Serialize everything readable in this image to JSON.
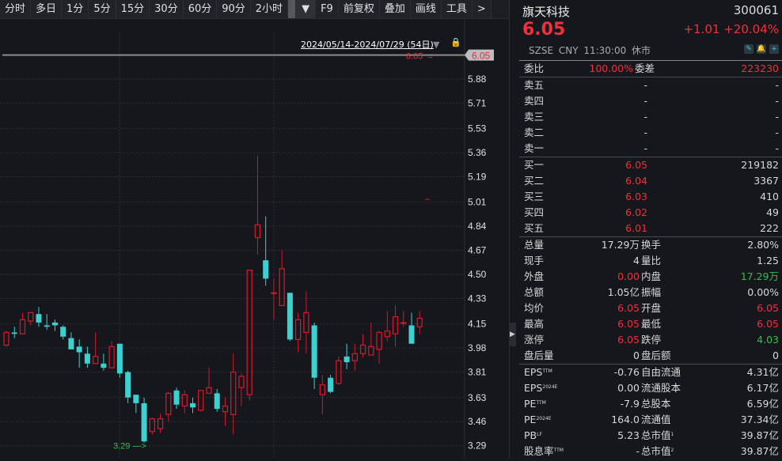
{
  "toolbar": {
    "items": [
      "分时",
      "多日",
      "1分",
      "5分",
      "15分",
      "30分",
      "60分",
      "90分",
      "2小时"
    ],
    "dropdown_icon": "triangle-down",
    "extra": [
      "F9",
      "前复权",
      "叠加",
      "画线",
      "工具",
      ">"
    ]
  },
  "chart": {
    "range_label": "2024/05/14-2024/07/29 (54日)",
    "last_price_label": "6.05",
    "last_price_arrow": "6.05 →",
    "low_label": "3.29 —>",
    "y_ticks": [
      "5.88",
      "5.71",
      "5.53",
      "5.36",
      "5.19",
      "5.01",
      "4.84",
      "4.67",
      "4.50",
      "4.33",
      "4.15",
      "3.98",
      "3.81",
      "3.63",
      "3.46",
      "3.29"
    ],
    "colors": {
      "up": "#d0182a",
      "down": "#3ecfd0",
      "price_line": "#8a8a8a"
    }
  },
  "chart_data": {
    "type": "candlestick",
    "y_ticks": [
      5.88,
      5.71,
      5.53,
      5.36,
      5.19,
      5.01,
      4.84,
      4.67,
      4.5,
      4.33,
      4.15,
      3.98,
      3.81,
      3.63,
      3.46,
      3.29
    ],
    "ylim": [
      3.26,
      6.1
    ],
    "last_price": 6.05,
    "low_marker": 3.29,
    "ohlc": [
      [
        4.0,
        4.1,
        3.99,
        4.09
      ],
      [
        4.09,
        4.13,
        4.05,
        4.08
      ],
      [
        4.08,
        4.23,
        4.08,
        4.18
      ],
      [
        4.17,
        4.23,
        4.14,
        4.23
      ],
      [
        4.22,
        4.27,
        4.13,
        4.16
      ],
      [
        4.14,
        4.22,
        4.11,
        4.13
      ],
      [
        4.16,
        4.18,
        4.1,
        4.14
      ],
      [
        4.13,
        4.14,
        4.04,
        4.06
      ],
      [
        4.05,
        4.09,
        3.97,
        3.97
      ],
      [
        3.99,
        4.04,
        3.84,
        3.95
      ],
      [
        3.94,
        3.99,
        3.84,
        3.87
      ],
      [
        3.87,
        4.09,
        3.87,
        3.92
      ],
      [
        3.87,
        3.94,
        3.82,
        3.84
      ],
      [
        3.84,
        4.03,
        3.84,
        3.99
      ],
      [
        4.01,
        4.01,
        3.77,
        3.8
      ],
      [
        3.81,
        3.82,
        3.59,
        3.63
      ],
      [
        3.65,
        3.65,
        3.52,
        3.59
      ],
      [
        3.59,
        3.63,
        3.31,
        3.32
      ],
      [
        3.39,
        3.49,
        3.37,
        3.48
      ],
      [
        3.41,
        3.52,
        3.38,
        3.48
      ],
      [
        3.51,
        3.67,
        3.46,
        3.66
      ],
      [
        3.68,
        3.7,
        3.55,
        3.58
      ],
      [
        3.57,
        3.68,
        3.52,
        3.65
      ],
      [
        3.59,
        3.63,
        3.52,
        3.56
      ],
      [
        3.54,
        3.68,
        3.53,
        3.68
      ],
      [
        3.66,
        3.84,
        3.66,
        3.7
      ],
      [
        3.66,
        3.69,
        3.53,
        3.55
      ],
      [
        3.53,
        3.63,
        3.43,
        3.57
      ],
      [
        3.51,
        3.94,
        3.37,
        3.81
      ],
      [
        3.7,
        3.8,
        3.57,
        3.78
      ],
      [
        3.65,
        4.53,
        3.61,
        4.53
      ],
      [
        4.76,
        5.34,
        4.64,
        4.85
      ],
      [
        4.6,
        4.91,
        4.42,
        4.47
      ],
      [
        4.37,
        4.47,
        4.18,
        4.37
      ],
      [
        4.28,
        4.67,
        4.28,
        4.54
      ],
      [
        4.37,
        4.37,
        4.03,
        4.04
      ],
      [
        4.04,
        4.23,
        3.95,
        4.18
      ],
      [
        4.09,
        4.38,
        3.94,
        4.23
      ],
      [
        4.14,
        4.16,
        3.69,
        3.77
      ],
      [
        3.65,
        3.79,
        3.51,
        3.72
      ],
      [
        3.77,
        3.79,
        3.66,
        3.67
      ],
      [
        3.73,
        3.92,
        3.72,
        3.89
      ],
      [
        3.92,
        4.01,
        3.83,
        3.88
      ],
      [
        3.89,
        4.01,
        3.82,
        3.94
      ],
      [
        3.94,
        4.08,
        3.91,
        4.0
      ],
      [
        3.93,
        4.16,
        3.93,
        3.99
      ],
      [
        3.97,
        4.1,
        3.87,
        4.09
      ],
      [
        4.06,
        4.24,
        4.03,
        4.1
      ],
      [
        4.08,
        4.28,
        3.99,
        4.2
      ],
      [
        4.16,
        4.24,
        4.13,
        4.16
      ],
      [
        4.14,
        4.23,
        4.01,
        4.01
      ],
      [
        4.13,
        4.24,
        4.08,
        4.19
      ]
    ]
  },
  "header": {
    "name": "旗天科技",
    "code": "300061",
    "price": "6.05",
    "change": "+1.01",
    "change_pct": "+20.04%",
    "meta": "SZSE  CNY  11:30:00  休市",
    "icons": [
      "pencil-icon",
      "bell-icon",
      "plus-icon"
    ]
  },
  "ratio": {
    "label1": "委比",
    "value1": "100.00%",
    "label2": "委差",
    "value2": "223230"
  },
  "asks": [
    {
      "label": "卖五",
      "price": "-",
      "vol": "-"
    },
    {
      "label": "卖四",
      "price": "-",
      "vol": "-"
    },
    {
      "label": "卖三",
      "price": "-",
      "vol": "-"
    },
    {
      "label": "卖二",
      "price": "-",
      "vol": "-"
    },
    {
      "label": "卖一",
      "price": "-",
      "vol": "-"
    }
  ],
  "bids": [
    {
      "label": "买一",
      "price": "6.05",
      "vol": "219182"
    },
    {
      "label": "买二",
      "price": "6.04",
      "vol": "3367"
    },
    {
      "label": "买三",
      "price": "6.03",
      "vol": "410"
    },
    {
      "label": "买四",
      "price": "6.02",
      "vol": "49"
    },
    {
      "label": "买五",
      "price": "6.01",
      "vol": "222"
    }
  ],
  "stats": [
    {
      "l1": "总量",
      "v1": "17.29万",
      "c1": "",
      "l2": "换手",
      "v2": "2.80%",
      "c2": ""
    },
    {
      "l1": "现手",
      "v1": "4",
      "c1": "",
      "l2": "量比",
      "v2": "1.25",
      "c2": ""
    },
    {
      "l1": "外盘",
      "v1": "0.00",
      "c1": "red",
      "l2": "内盘",
      "v2": "17.29万",
      "c2": "green"
    },
    {
      "l1": "总额",
      "v1": "1.05亿",
      "c1": "",
      "l2": "振幅",
      "v2": "0.00%",
      "c2": ""
    },
    {
      "l1": "均价",
      "v1": "6.05",
      "c1": "red",
      "l2": "开盘",
      "v2": "6.05",
      "c2": "red"
    },
    {
      "l1": "最高",
      "v1": "6.05",
      "c1": "red",
      "l2": "最低",
      "v2": "6.05",
      "c2": "red"
    },
    {
      "l1": "涨停",
      "v1": "6.05",
      "c1": "red",
      "l2": "跌停",
      "v2": "4.03",
      "c2": "green"
    },
    {
      "l1": "盘后量",
      "v1": "0",
      "c1": "",
      "l2": "盘后额",
      "v2": "0",
      "c2": ""
    }
  ],
  "fundamentals": [
    {
      "l1": "EPS",
      "s1": "TTM",
      "v1": "-0.76",
      "l2": "自由流通",
      "s2": "",
      "v2": "4.31亿"
    },
    {
      "l1": "EPS",
      "s1": "2024E",
      "v1": "0.00",
      "l2": "流通股本",
      "s2": "",
      "v2": "6.17亿"
    },
    {
      "l1": "PE",
      "s1": "TTM",
      "v1": "-7.9",
      "l2": "总股本",
      "s2": "",
      "v2": "6.59亿"
    },
    {
      "l1": "PE",
      "s1": "2024E",
      "v1": "164.0",
      "l2": "流通值",
      "s2": "",
      "v2": "37.34亿"
    },
    {
      "l1": "PB",
      "s1": "LF",
      "v1": "5.23",
      "l2": "总市值",
      "s2": "1",
      "v2": "39.87亿"
    },
    {
      "l1": "股息率",
      "s1": "TTM",
      "v1": "-",
      "l2": "总市值",
      "s2": "2",
      "v2": "39.87亿"
    }
  ]
}
